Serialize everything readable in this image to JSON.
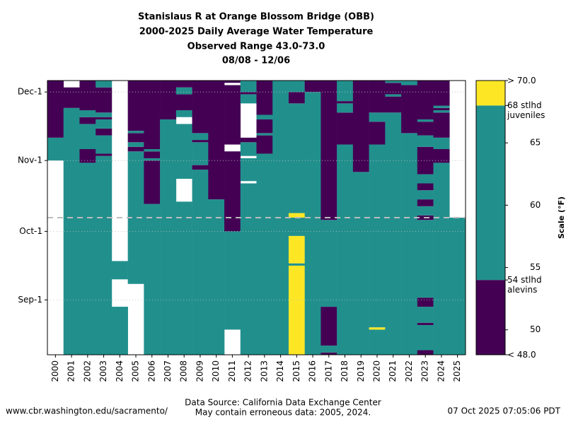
{
  "chart_data": {
    "type": "heatmap",
    "title_lines": [
      "Stanislaus R at Orange Blossom Bridge (OBB)",
      "2000-2025 Daily Average Water Temperature",
      "Observed Range 43.0-73.0",
      "08/08 - 12/06"
    ],
    "categories": [
      "2000",
      "2001",
      "2002",
      "2003",
      "2004",
      "2005",
      "2006",
      "2007",
      "2008",
      "2009",
      "2010",
      "2011",
      "2012",
      "2013",
      "2014",
      "2015",
      "2016",
      "2017",
      "2018",
      "2019",
      "2020",
      "2021",
      "2022",
      "2023",
      "2024",
      "2025"
    ],
    "ylim": [
      0,
      120
    ],
    "yticks": [
      {
        "value": 24,
        "label": "Sep-1"
      },
      {
        "value": 54,
        "label": "Oct-1"
      },
      {
        "value": 85,
        "label": "Nov-1"
      },
      {
        "value": 115,
        "label": "Dec-1"
      }
    ],
    "reference_line": 60,
    "segments": [
      [
        [
          85,
          95,
          1
        ],
        [
          95,
          120,
          0
        ]
      ],
      [
        [
          0,
          108,
          1
        ],
        [
          108,
          117,
          0
        ]
      ],
      [
        [
          0,
          84,
          1
        ],
        [
          84,
          90,
          0
        ],
        [
          90,
          101,
          1
        ],
        [
          101,
          104,
          0
        ],
        [
          104,
          107,
          1
        ],
        [
          107,
          120,
          0
        ]
      ],
      [
        [
          0,
          87,
          1
        ],
        [
          87,
          88,
          0
        ],
        [
          88,
          96,
          1
        ],
        [
          96,
          99,
          0
        ],
        [
          99,
          103,
          1
        ],
        [
          103,
          104,
          0
        ],
        [
          104,
          106,
          1
        ],
        [
          106,
          117,
          0
        ],
        [
          117,
          120,
          1
        ]
      ],
      [
        [
          0,
          21,
          1
        ],
        [
          33,
          41,
          1
        ]
      ],
      [
        [
          31,
          89,
          1
        ],
        [
          89,
          91,
          0
        ],
        [
          91,
          93,
          1
        ],
        [
          93,
          97,
          0
        ],
        [
          97,
          98,
          1
        ],
        [
          98,
          120,
          0
        ]
      ],
      [
        [
          0,
          66,
          1
        ],
        [
          66,
          85,
          0
        ],
        [
          85,
          86,
          1
        ],
        [
          86,
          89,
          0
        ],
        [
          89,
          90,
          1
        ],
        [
          90,
          120,
          0
        ]
      ],
      [
        [
          0,
          103,
          1
        ],
        [
          103,
          120,
          0
        ]
      ],
      [
        [
          0,
          67,
          1
        ],
        [
          77,
          101,
          1
        ],
        [
          104,
          107,
          1
        ],
        [
          107,
          114,
          0
        ],
        [
          114,
          117,
          1
        ],
        [
          117,
          120,
          0
        ]
      ],
      [
        [
          0,
          81,
          1
        ],
        [
          81,
          83,
          0
        ],
        [
          83,
          93,
          1
        ],
        [
          93,
          94,
          0
        ],
        [
          94,
          97,
          1
        ],
        [
          97,
          120,
          0
        ]
      ],
      [
        [
          0,
          68,
          1
        ],
        [
          68,
          120,
          0
        ]
      ],
      [
        [
          11,
          54,
          1
        ],
        [
          54,
          89,
          0
        ],
        [
          92,
          118,
          0
        ],
        [
          119,
          120,
          0
        ]
      ],
      [
        [
          0,
          75,
          1
        ],
        [
          76,
          86,
          1
        ],
        [
          87,
          93,
          1
        ],
        [
          93,
          95,
          0
        ],
        [
          110,
          114,
          1
        ],
        [
          114,
          115,
          0
        ],
        [
          115,
          120,
          1
        ]
      ],
      [
        [
          0,
          88,
          1
        ],
        [
          88,
          96,
          0
        ],
        [
          96,
          97,
          1
        ],
        [
          97,
          103,
          0
        ],
        [
          103,
          105,
          1
        ],
        [
          105,
          120,
          0
        ]
      ],
      [
        [
          0,
          120,
          1
        ]
      ],
      [
        [
          0,
          39,
          2
        ],
        [
          39,
          40,
          1
        ],
        [
          40,
          52,
          2
        ],
        [
          52,
          60,
          1
        ],
        [
          60,
          62,
          2
        ],
        [
          62,
          110,
          1
        ],
        [
          110,
          115,
          0
        ],
        [
          115,
          120,
          1
        ]
      ],
      [
        [
          0,
          115,
          1
        ],
        [
          115,
          120,
          0
        ]
      ],
      [
        [
          0,
          1,
          0
        ],
        [
          1,
          4,
          1
        ],
        [
          4,
          21,
          0
        ],
        [
          21,
          59,
          1
        ],
        [
          59,
          120,
          0
        ]
      ],
      [
        [
          0,
          92,
          1
        ],
        [
          92,
          106,
          0
        ],
        [
          106,
          110,
          1
        ],
        [
          110,
          111,
          0
        ],
        [
          111,
          120,
          1
        ]
      ],
      [
        [
          0,
          80,
          1
        ],
        [
          80,
          120,
          0
        ]
      ],
      [
        [
          0,
          11,
          1
        ],
        [
          11,
          12,
          2
        ],
        [
          12,
          92,
          1
        ],
        [
          92,
          102,
          0
        ],
        [
          102,
          106,
          1
        ],
        [
          106,
          120,
          0
        ]
      ],
      [
        [
          0,
          106,
          1
        ],
        [
          106,
          113,
          0
        ],
        [
          113,
          114,
          1
        ],
        [
          114,
          119,
          0
        ],
        [
          119,
          120,
          1
        ]
      ],
      [
        [
          0,
          97,
          1
        ],
        [
          97,
          118,
          0
        ],
        [
          118,
          120,
          1
        ]
      ],
      [
        [
          0,
          2,
          0
        ],
        [
          2,
          13,
          1
        ],
        [
          13,
          14,
          0
        ],
        [
          14,
          21,
          1
        ],
        [
          21,
          25,
          0
        ],
        [
          25,
          59,
          1
        ],
        [
          59,
          61,
          0
        ],
        [
          61,
          65,
          1
        ],
        [
          65,
          68,
          0
        ],
        [
          68,
          72,
          1
        ],
        [
          72,
          75,
          0
        ],
        [
          75,
          79,
          1
        ],
        [
          79,
          91,
          0
        ],
        [
          91,
          96,
          1
        ],
        [
          96,
          102,
          0
        ],
        [
          102,
          103,
          1
        ],
        [
          103,
          120,
          0
        ]
      ],
      [
        [
          0,
          84,
          1
        ],
        [
          84,
          90,
          0
        ],
        [
          90,
          95,
          1
        ],
        [
          95,
          106,
          0
        ],
        [
          106,
          107,
          1
        ],
        [
          107,
          108,
          0
        ],
        [
          108,
          109,
          1
        ],
        [
          109,
          120,
          0
        ]
      ],
      [
        [
          0,
          60,
          1
        ]
      ]
    ],
    "colorbar": {
      "label": "Scale (°F)",
      "clim": [
        48,
        70
      ],
      "cticks": [
        50,
        55,
        60,
        65
      ],
      "bands": [
        {
          "from": 48,
          "to": 54,
          "color": "#440154"
        },
        {
          "from": 54,
          "to": 68,
          "color": "#21908d"
        },
        {
          "from": 68,
          "to": 70,
          "color": "#fde725"
        }
      ],
      "labels": [
        {
          "value": 70,
          "label": "> 70.0"
        },
        {
          "value": 68,
          "label": "68 stlhd juveniles"
        },
        {
          "value": 54,
          "label": "54 stlhd alevins"
        },
        {
          "value": 48,
          "label": "< 48.0"
        }
      ]
    }
  },
  "footer": {
    "left": "www.cbr.washington.edu/sacramento/",
    "center": [
      "Data Source: California Data Exchange Center",
      "May contain erroneous data: 2005, 2024."
    ],
    "right": "07 Oct 2025 07:05:06 PDT"
  }
}
